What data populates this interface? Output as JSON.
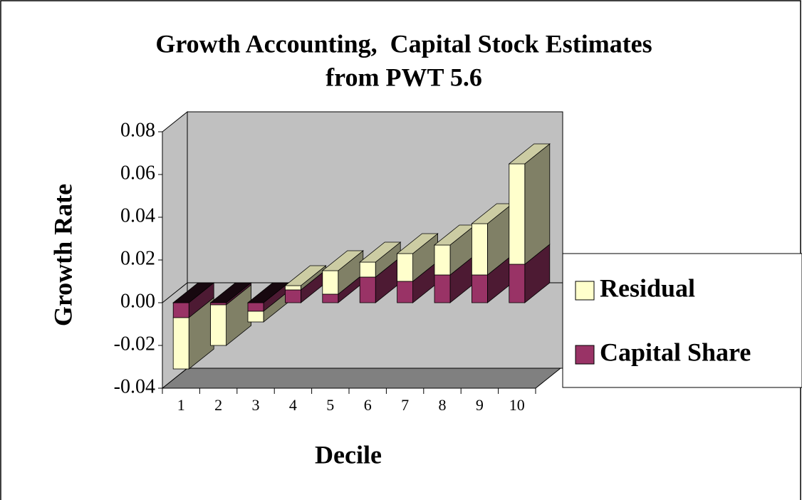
{
  "chart_data": {
    "type": "bar3d_stacked",
    "title": "Growth Accounting,  Capital Stock Estimates",
    "subtitle": "from PWT 5.6",
    "x_label": "Decile",
    "y_label": "Growth Rate",
    "categories": [
      "1",
      "2",
      "3",
      "4",
      "5",
      "6",
      "7",
      "8",
      "9",
      "10"
    ],
    "series": [
      {
        "name": "Capital Share",
        "color": "#993366",
        "values": [
          -0.007,
          -0.001,
          -0.004,
          0.006,
          0.004,
          0.012,
          0.01,
          0.013,
          0.013,
          0.018
        ]
      },
      {
        "name": "Residual",
        "color": "#ffffcc",
        "values": [
          -0.024,
          -0.019,
          -0.005,
          0.002,
          0.011,
          0.007,
          0.013,
          0.014,
          0.024,
          0.047
        ]
      }
    ],
    "ylim": [
      -0.04,
      0.08
    ],
    "yticks": [
      -0.04,
      -0.02,
      {
        "value": 0,
        "label": "0.00"
      },
      0.02,
      0.04,
      0.06,
      0.08
    ]
  }
}
